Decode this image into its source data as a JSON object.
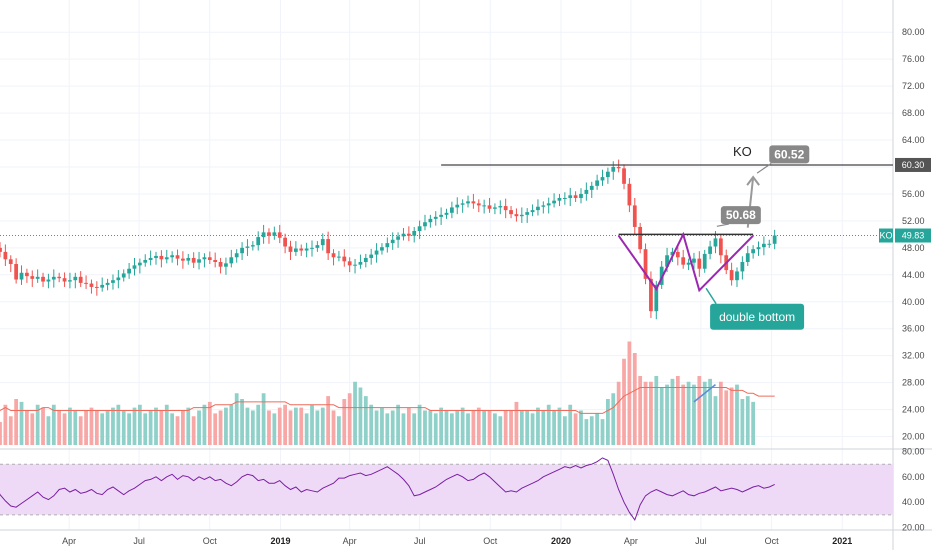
{
  "chart_data": {
    "type": "candlestick",
    "symbol": "KO",
    "interval": "weekly",
    "price_axis": {
      "ticks": [
        "80.00",
        "76.00",
        "72.00",
        "68.00",
        "64.00",
        "60.00",
        "56.00",
        "52.00",
        "48.00",
        "44.00",
        "40.00",
        "36.00",
        "32.00",
        "28.00",
        "24.00",
        "20.00"
      ],
      "ylim": [
        18,
        83
      ]
    },
    "rsi_axis": {
      "ticks": [
        "80.00",
        "60.00",
        "40.00",
        "20.00"
      ],
      "ylim": [
        18,
        82
      ],
      "band": [
        30,
        70
      ]
    },
    "time_axis": {
      "ticks": [
        {
          "label": "Apr",
          "date": "2018-04-01",
          "year": false
        },
        {
          "label": "Jul",
          "date": "2018-07-01",
          "year": false
        },
        {
          "label": "Oct",
          "date": "2018-10-01",
          "year": false
        },
        {
          "label": "2019",
          "date": "2019-01-01",
          "year": true
        },
        {
          "label": "Apr",
          "date": "2019-04-01",
          "year": false
        },
        {
          "label": "Jul",
          "date": "2019-07-01",
          "year": false
        },
        {
          "label": "Oct",
          "date": "2019-10-01",
          "year": false
        },
        {
          "label": "2020",
          "date": "2020-01-01",
          "year": true
        },
        {
          "label": "Apr",
          "date": "2020-04-01",
          "year": false
        },
        {
          "label": "Jul",
          "date": "2020-07-01",
          "year": false
        },
        {
          "label": "Oct",
          "date": "2020-10-01",
          "year": false
        },
        {
          "label": "2021",
          "date": "2021-01-01",
          "year": true
        }
      ],
      "range": [
        "2018-01-01",
        "2021-03-08"
      ]
    },
    "closes": [
      48.0,
      47.4,
      46.3,
      45.6,
      43.3,
      44.3,
      43.8,
      43.4,
      43.7,
      43.0,
      43.3,
      43.7,
      43.5,
      43.0,
      43.2,
      43.7,
      42.8,
      42.7,
      42.2,
      42.1,
      42.5,
      42.8,
      43.2,
      43.6,
      44.2,
      44.9,
      45.4,
      45.8,
      46.2,
      46.5,
      46.8,
      46.3,
      46.6,
      46.9,
      46.4,
      46.1,
      46.5,
      45.8,
      46.3,
      46.6,
      46.2,
      45.9,
      45.2,
      45.7,
      46.6,
      47.2,
      48.0,
      48.2,
      48.4,
      49.6,
      50.3,
      49.8,
      50.3,
      49.5,
      48.2,
      47.4,
      47.9,
      47.6,
      47.9,
      48.0,
      48.4,
      49.3,
      47.2,
      46.6,
      46.7,
      46.0,
      45.4,
      45.5,
      45.9,
      46.5,
      47.0,
      47.6,
      48.1,
      48.7,
      49.2,
      49.7,
      50.1,
      49.8,
      50.5,
      51.2,
      51.8,
      52.3,
      52.6,
      52.9,
      53.2,
      54.0,
      54.4,
      54.6,
      54.9,
      54.6,
      54.3,
      54.3,
      53.8,
      54.0,
      54.2,
      53.6,
      53.0,
      52.7,
      52.9,
      53.3,
      53.6,
      54.1,
      54.3,
      54.6,
      55.0,
      55.4,
      55.4,
      55.8,
      55.4,
      56.0,
      56.6,
      57.2,
      58.0,
      58.5,
      59.3,
      60.0,
      59.8,
      57.5,
      54.3,
      51.1,
      47.8,
      43.4,
      38.6,
      42.5,
      45.2,
      46.9,
      47.4,
      46.6,
      45.5,
      45.8,
      46.4,
      44.9,
      47.1,
      48.2,
      49.4,
      46.9,
      44.7,
      43.2,
      44.5,
      45.9,
      47.2,
      47.8,
      48.1,
      48.6,
      48.6,
      49.83
    ],
    "volume_axis_max": 40,
    "volumes": [
      13,
      8,
      14,
      10,
      16,
      15,
      12,
      11,
      14,
      13,
      10,
      14,
      12,
      11,
      13,
      12,
      10,
      12,
      13,
      12,
      11,
      12,
      13,
      14,
      12,
      11,
      13,
      14,
      11,
      12,
      13,
      12,
      14,
      11,
      10,
      12,
      13,
      10,
      12,
      14,
      15,
      11,
      12,
      13,
      14,
      18,
      16,
      13,
      12,
      14,
      18,
      12,
      11,
      13,
      14,
      12,
      13,
      13,
      11,
      14,
      12,
      13,
      17,
      12,
      10,
      16,
      18,
      22,
      20,
      17,
      14,
      12,
      13,
      11,
      12,
      14,
      11,
      13,
      11,
      14,
      12,
      12,
      11,
      13,
      12,
      11,
      12,
      13,
      11,
      12,
      13,
      12,
      12,
      11,
      10,
      12,
      12,
      15,
      12,
      12,
      11,
      13,
      12,
      14,
      12,
      13,
      10,
      14,
      11,
      12,
      9,
      10,
      11,
      9,
      16,
      18,
      22,
      30,
      36,
      32,
      24,
      22,
      22,
      24,
      20,
      21,
      23,
      24,
      21,
      22,
      21,
      24,
      22,
      23,
      17,
      22,
      19,
      20,
      21,
      16,
      17,
      15
    ],
    "volume_ma": [
      12,
      12,
      13,
      12,
      12,
      12,
      12,
      12,
      12,
      13,
      13,
      12,
      12,
      12,
      12,
      12,
      12,
      12,
      12,
      12,
      12,
      12,
      12,
      12,
      12,
      12,
      12,
      12,
      12,
      12,
      12,
      12,
      12,
      12,
      12,
      12,
      12,
      13,
      13,
      13,
      13,
      14,
      14,
      14,
      14,
      15,
      15,
      15,
      15,
      15,
      15,
      15,
      15,
      15,
      15,
      14,
      14,
      14,
      14,
      14,
      14,
      14,
      14,
      14,
      13,
      13,
      13,
      13,
      13,
      13,
      13,
      13,
      13,
      13,
      13,
      13,
      13,
      13,
      13,
      13,
      13,
      12,
      12,
      12,
      12,
      12,
      12,
      12,
      12,
      12,
      12,
      12,
      12,
      12,
      12,
      12,
      12,
      12,
      12,
      12,
      12,
      12,
      12,
      12,
      12,
      12,
      12,
      12,
      12,
      11,
      11,
      11,
      11,
      11,
      12,
      13,
      15,
      17,
      18,
      19,
      20,
      20,
      20,
      20,
      20,
      20,
      20,
      20,
      20,
      20,
      20,
      20,
      20,
      20,
      20,
      20,
      20,
      19,
      19,
      19,
      18,
      18,
      17,
      17,
      17,
      17
    ],
    "rsi": [
      55,
      46,
      41,
      37,
      36,
      39,
      42,
      45,
      48,
      44,
      42,
      45,
      50,
      51,
      48,
      50,
      47,
      48,
      50,
      47,
      46,
      50,
      52,
      49,
      46,
      49,
      51,
      54,
      57,
      58,
      60,
      57,
      60,
      62,
      58,
      61,
      60,
      57,
      60,
      58,
      60,
      57,
      58,
      55,
      53,
      56,
      60,
      62,
      61,
      57,
      58,
      55,
      55,
      57,
      53,
      50,
      52,
      48,
      50,
      49,
      48,
      51,
      53,
      55,
      59,
      59,
      61,
      62,
      63,
      61,
      62,
      64,
      66,
      68,
      65,
      62,
      58,
      53,
      45,
      46,
      48,
      50,
      52,
      55,
      58,
      60,
      62,
      60,
      57,
      58,
      61,
      63,
      60,
      56,
      52,
      48,
      49,
      48,
      51,
      53,
      55,
      57,
      60,
      62,
      64,
      66,
      68,
      67,
      69,
      67,
      69,
      70,
      72,
      75,
      73,
      62,
      50,
      40,
      32,
      26,
      38,
      45,
      48,
      50,
      48,
      46,
      45,
      47,
      49,
      46,
      45,
      47,
      48,
      50,
      52,
      49,
      50,
      51,
      50,
      48,
      50,
      52,
      53,
      51,
      52,
      54,
      55,
      54
    ],
    "resistance_line": {
      "value": 60.3,
      "from": "2019-07-29",
      "to": "2021-03-08"
    },
    "neckline": {
      "value": 50.0,
      "from": "2020-03-16",
      "to": "2020-09-07"
    },
    "double_bottom_lows": [
      {
        "date": "2020-03-16",
        "price": 49.8
      },
      {
        "date": "2020-05-04",
        "price": 41.9
      },
      {
        "date": "2020-06-08",
        "price": 50.0
      },
      {
        "date": "2020-06-29",
        "price": 41.7
      },
      {
        "date": "2020-09-07",
        "price": 49.8
      }
    ],
    "projection_arrow": {
      "from": {
        "date": "2020-08-31",
        "price": 51.0
      },
      "to": {
        "date": "2020-09-07",
        "price": 58.5
      }
    },
    "volume_trend": {
      "from": {
        "date": "2020-06-22",
        "value": 15
      },
      "to": {
        "date": "2020-07-20",
        "value": 21
      }
    },
    "labels": {
      "last_price": "49.83",
      "resistance_price": "60.30",
      "target_top": "60.52",
      "target_mid": "50.68",
      "pattern_name": "double bottom",
      "symbol_tag": "KO"
    },
    "colors": {
      "up": "#26a69a",
      "down": "#ef5350",
      "up_vol": "#8fd0c8",
      "down_vol": "#f7a7a5",
      "rsi": "#7b1fa2",
      "rsi_band": "#eedaf7",
      "pattern": "#9c27b0",
      "callout": "#888888",
      "teal_callout": "#26a69a",
      "vol_ma": "#ef6c5c"
    }
  }
}
